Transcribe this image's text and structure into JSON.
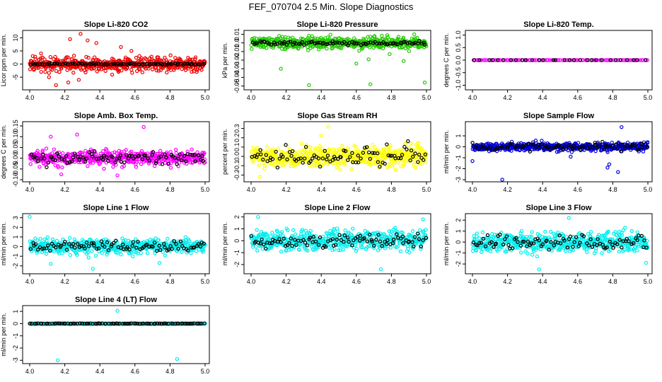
{
  "figure": {
    "title": "FEF_070704  2.5 Min. Slope Diagnostics"
  },
  "colors": {
    "red": "#ee0000",
    "green": "#22cc00",
    "magenta": "#ff00ff",
    "yellow": "#ffff00",
    "blue": "#0000dd",
    "cyan": "#00eeee",
    "black": "#000000"
  },
  "chart_data": [
    {
      "type": "scatter",
      "title": "Slope Li-820 CO2",
      "ylabel": "Licor ppm per min.",
      "xlim": [
        4.0,
        5.0
      ],
      "ylim": [
        -9,
        12
      ],
      "xticks": [
        "4.0",
        "4.2",
        "4.4",
        "4.6",
        "4.8",
        "5.0"
      ],
      "yticks": [
        "-5",
        "0",
        "5",
        "10"
      ],
      "ytick_values": [
        -5,
        0,
        5,
        10
      ],
      "color": "red",
      "spread": 2.5,
      "black_spread": 0.3,
      "outliers": [
        [
          4.29,
          11.5
        ],
        [
          4.23,
          9.5
        ],
        [
          4.33,
          9
        ],
        [
          4.38,
          8
        ],
        [
          4.52,
          6.5
        ],
        [
          4.58,
          5
        ],
        [
          4.15,
          -8
        ],
        [
          4.28,
          -6
        ],
        [
          4.11,
          -5
        ],
        [
          4.22,
          -7
        ],
        [
          4.47,
          -4
        ]
      ]
    },
    {
      "type": "scatter",
      "title": "Slope Li-820 Pressure",
      "ylabel": "kPa per min.",
      "xlim": [
        4.0,
        5.0
      ],
      "ylim": [
        -0.052,
        0.012
      ],
      "xticks": [
        "4.0",
        "4.2",
        "4.4",
        "4.6",
        "4.8",
        "5.0"
      ],
      "yticks": [
        "-0.05",
        "-0.04",
        "-0.03",
        "-0.02",
        "-0.01",
        "0.0",
        "0.01"
      ],
      "ytick_values": [
        -0.05,
        -0.04,
        -0.03,
        -0.02,
        -0.01,
        0.0,
        0.01
      ],
      "color": "green",
      "spread": 0.006,
      "black_spread": 0.002,
      "outliers": [
        [
          4.33,
          -0.049
        ],
        [
          4.68,
          -0.048
        ],
        [
          4.99,
          -0.046
        ],
        [
          4.17,
          -0.03
        ],
        [
          4.6,
          -0.024
        ],
        [
          4.67,
          -0.019
        ],
        [
          4.87,
          -0.021
        ],
        [
          4.79,
          -0.013
        ],
        [
          4.93,
          0.01
        ],
        [
          4.16,
          0.008
        ]
      ]
    },
    {
      "type": "scatter",
      "title": "Slope Li-820 Temp.",
      "ylabel": "degrees C per min.",
      "xlim": [
        4.0,
        5.0
      ],
      "ylim": [
        -1.1,
        1.1
      ],
      "xticks": [
        "4.0",
        "4.2",
        "4.4",
        "4.6",
        "4.8",
        "5.0"
      ],
      "yticks": [
        "-1.0",
        "-0.5",
        "0.0",
        "0.5",
        "1.0"
      ],
      "ytick_values": [
        -1.0,
        -0.5,
        0.0,
        0.5,
        1.0
      ],
      "color": "magenta",
      "spread": 0.0,
      "black_spread": 0.0,
      "outliers": []
    },
    {
      "type": "scatter",
      "title": "Slope Amb. Box Temp.",
      "ylabel": "degrees C per min.",
      "xlim": [
        4.0,
        5.0
      ],
      "ylim": [
        -0.1,
        0.16
      ],
      "xticks": [
        "4.0",
        "4.2",
        "4.4",
        "4.6",
        "4.8",
        "5.0"
      ],
      "yticks": [
        "-0.10",
        "-0.05",
        "0.00",
        "0.05",
        "0.10",
        "0.15"
      ],
      "ytick_values": [
        -0.1,
        -0.05,
        0.0,
        0.05,
        0.1,
        0.15
      ],
      "color": "magenta",
      "spread": 0.03,
      "black_spread": 0.025,
      "outliers": [
        [
          4.65,
          0.145
        ],
        [
          4.27,
          0.11
        ],
        [
          4.12,
          0.1
        ],
        [
          4.5,
          -0.08
        ],
        [
          4.18,
          -0.075
        ]
      ]
    },
    {
      "type": "scatter",
      "title": "Slope Gas Stream RH",
      "ylabel": "percent per min.",
      "xlim": [
        4.0,
        5.0
      ],
      "ylim": [
        -0.25,
        0.35
      ],
      "xticks": [
        "4.0",
        "4.2",
        "4.4",
        "4.6",
        "4.8",
        "5.0"
      ],
      "yticks": [
        "-0.2",
        "-0.1",
        "0.0",
        "0.1",
        "0.2",
        "0.3"
      ],
      "ytick_values": [
        -0.2,
        -0.1,
        0.0,
        0.1,
        0.2,
        0.3
      ],
      "color": "yellow",
      "spread": 0.1,
      "black_spread": 0.09,
      "outliers": [
        [
          4.44,
          0.32
        ],
        [
          4.4,
          0.22
        ],
        [
          4.05,
          -0.22
        ]
      ]
    },
    {
      "type": "scatter",
      "title": "Slope Sample Flow",
      "ylabel": "ml/min per min.",
      "xlim": [
        4.0,
        5.0
      ],
      "ylim": [
        -3,
        2.1
      ],
      "xticks": [
        "4.0",
        "4.2",
        "4.4",
        "4.6",
        "4.8",
        "5.0"
      ],
      "yticks": [
        "-3",
        "-2",
        "-1",
        "0",
        "1"
      ],
      "ytick_values": [
        -3,
        -2,
        -1,
        0,
        1
      ],
      "color": "blue",
      "spread": 0.35,
      "black_spread": 0.3,
      "outliers": [
        [
          4.85,
          1.8
        ],
        [
          4.78,
          -1.6
        ],
        [
          4.77,
          -1.9
        ],
        [
          4.83,
          -2.3
        ],
        [
          4.17,
          -3
        ],
        [
          4.0,
          -1.3
        ],
        [
          4.56,
          -0.9
        ]
      ]
    },
    {
      "type": "scatter",
      "title": "Slope Line 1 Flow",
      "ylabel": "ml/min per min.",
      "xlim": [
        4.0,
        5.0
      ],
      "ylim": [
        -2.6,
        3.2
      ],
      "xticks": [
        "4.0",
        "4.2",
        "4.4",
        "4.6",
        "4.8",
        "5.0"
      ],
      "yticks": [
        "-2",
        "-1",
        "0",
        "1",
        "2",
        "3"
      ],
      "ytick_values": [
        -2,
        -1,
        0,
        1,
        2,
        3
      ],
      "color": "cyan",
      "spread": 0.7,
      "black_spread": 0.45,
      "outliers": [
        [
          4.0,
          3.1
        ],
        [
          4.36,
          -2.3
        ],
        [
          4.12,
          -1.8
        ],
        [
          4.74,
          -1.7
        ]
      ]
    },
    {
      "type": "scatter",
      "title": "Slope Line 2 Flow",
      "ylabel": "ml/min per min.",
      "xlim": [
        4.0,
        5.0
      ],
      "ylim": [
        -2.6,
        2.1
      ],
      "xticks": [
        "4.0",
        "4.2",
        "4.4",
        "4.6",
        "4.8",
        "5.0"
      ],
      "yticks": [
        "-2",
        "-1",
        "0",
        "1",
        "2"
      ],
      "ytick_values": [
        -2,
        -1,
        0,
        1,
        2
      ],
      "color": "cyan",
      "spread": 0.75,
      "black_spread": 0.55,
      "outliers": [
        [
          4.04,
          2.0
        ],
        [
          4.98,
          1.8
        ],
        [
          4.74,
          -2.4
        ]
      ]
    },
    {
      "type": "scatter",
      "title": "Slope Line 3 Flow",
      "ylabel": "ml/min per min.",
      "xlim": [
        4.0,
        5.0
      ],
      "ylim": [
        -2.7,
        2.4
      ],
      "xticks": [
        "4.0",
        "4.2",
        "4.4",
        "4.6",
        "4.8",
        "5.0"
      ],
      "yticks": [
        "-2",
        "-1",
        "0",
        "1",
        "2"
      ],
      "ytick_values": [
        -2,
        -1,
        0,
        1,
        2
      ],
      "color": "cyan",
      "spread": 0.8,
      "black_spread": 0.6,
      "outliers": [
        [
          4.55,
          2.2
        ],
        [
          4.38,
          -2.5
        ],
        [
          4.99,
          -1.9
        ]
      ]
    },
    {
      "type": "scatter",
      "title": "Slope Line 4 (LT) Flow",
      "ylabel": "ml/min per min.",
      "xlim": [
        4.0,
        5.0
      ],
      "ylim": [
        -3.1,
        1.3
      ],
      "xticks": [
        "4.0",
        "4.2",
        "4.4",
        "4.6",
        "4.8",
        "5.0"
      ],
      "yticks": [
        "-3",
        "-2",
        "-1",
        "0",
        "1"
      ],
      "ytick_values": [
        -3,
        -2,
        -1,
        0,
        1
      ],
      "color": "cyan",
      "spread": 0.03,
      "black_spread": 0.02,
      "outliers": [
        [
          4.5,
          1.05
        ],
        [
          4.16,
          -3.0
        ],
        [
          4.84,
          -2.9
        ]
      ]
    }
  ]
}
